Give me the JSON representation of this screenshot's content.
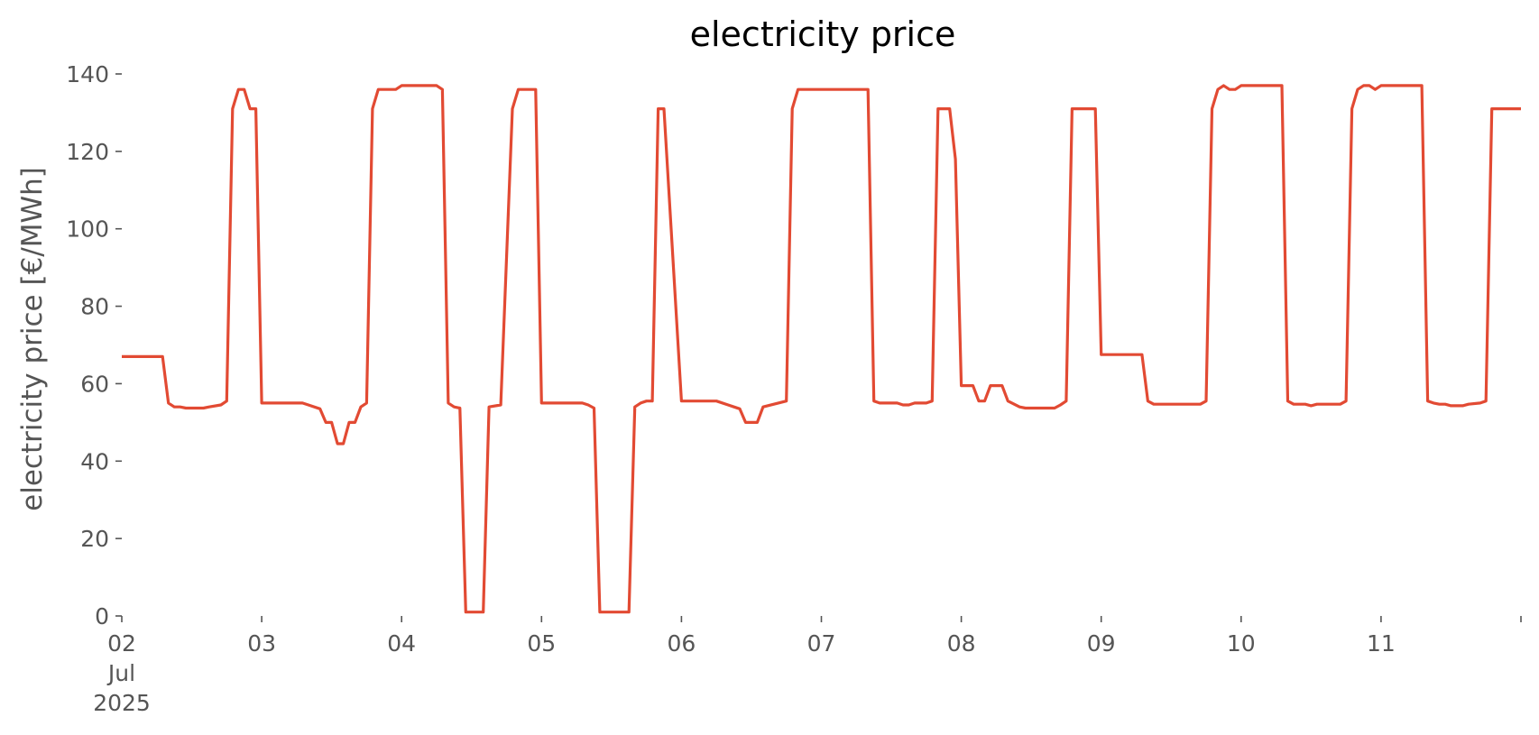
{
  "chart_data": {
    "type": "line",
    "title": "electricity price",
    "xlabel": "",
    "ylabel": "electricity price [€/MWh]",
    "ylim": [
      0,
      140
    ],
    "xlim": [
      "2025-07-02T00:00",
      "2025-07-12T00:00"
    ],
    "x_ticks": [
      {
        "x": "2025-07-02T00:00",
        "label": "02",
        "sublabels": [
          "Jul",
          "2025"
        ]
      },
      {
        "x": "2025-07-03T00:00",
        "label": "03",
        "sublabels": []
      },
      {
        "x": "2025-07-04T00:00",
        "label": "04",
        "sublabels": []
      },
      {
        "x": "2025-07-05T00:00",
        "label": "05",
        "sublabels": []
      },
      {
        "x": "2025-07-06T00:00",
        "label": "06",
        "sublabels": []
      },
      {
        "x": "2025-07-07T00:00",
        "label": "07",
        "sublabels": []
      },
      {
        "x": "2025-07-08T00:00",
        "label": "08",
        "sublabels": []
      },
      {
        "x": "2025-07-09T00:00",
        "label": "09",
        "sublabels": []
      },
      {
        "x": "2025-07-10T00:00",
        "label": "10",
        "sublabels": []
      },
      {
        "x": "2025-07-11T00:00",
        "label": "11",
        "sublabels": []
      },
      {
        "x": "2025-07-12T00:00",
        "label": "",
        "sublabels": []
      }
    ],
    "y_ticks": [
      {
        "y": 0,
        "label": "0"
      },
      {
        "y": 20,
        "label": "20"
      },
      {
        "y": 40,
        "label": "40"
      },
      {
        "y": 60,
        "label": "60"
      },
      {
        "y": 80,
        "label": "80"
      },
      {
        "y": 100,
        "label": "100"
      },
      {
        "y": 120,
        "label": "120"
      },
      {
        "y": 140,
        "label": "140"
      }
    ],
    "grid": false,
    "legend": "none",
    "series": [
      {
        "color": "#e24a33",
        "points": [
          [
            "2025-07-02T00:00",
            67
          ],
          [
            "2025-07-02T07:00",
            67
          ],
          [
            "2025-07-02T08:00",
            55
          ],
          [
            "2025-07-02T09:00",
            54
          ],
          [
            "2025-07-02T10:00",
            54
          ],
          [
            "2025-07-02T11:00",
            53.7
          ],
          [
            "2025-07-02T14:00",
            53.7
          ],
          [
            "2025-07-02T15:00",
            54
          ],
          [
            "2025-07-02T17:00",
            54.5
          ],
          [
            "2025-07-02T18:00",
            55.5
          ],
          [
            "2025-07-02T19:00",
            131
          ],
          [
            "2025-07-02T20:00",
            136
          ],
          [
            "2025-07-02T21:00",
            136
          ],
          [
            "2025-07-02T22:00",
            131
          ],
          [
            "2025-07-02T23:00",
            131
          ],
          [
            "2025-07-03T00:00",
            55
          ],
          [
            "2025-07-03T07:00",
            55
          ],
          [
            "2025-07-03T08:00",
            54.5
          ],
          [
            "2025-07-03T10:00",
            53.5
          ],
          [
            "2025-07-03T11:00",
            50
          ],
          [
            "2025-07-03T12:00",
            50
          ],
          [
            "2025-07-03T13:00",
            44.5
          ],
          [
            "2025-07-03T14:00",
            44.5
          ],
          [
            "2025-07-03T15:00",
            50
          ],
          [
            "2025-07-03T16:00",
            50
          ],
          [
            "2025-07-03T17:00",
            54
          ],
          [
            "2025-07-03T18:00",
            55
          ],
          [
            "2025-07-03T19:00",
            131
          ],
          [
            "2025-07-03T20:00",
            136
          ],
          [
            "2025-07-03T23:00",
            136
          ],
          [
            "2025-07-04T00:00",
            137
          ],
          [
            "2025-07-04T06:00",
            137
          ],
          [
            "2025-07-04T07:00",
            136
          ],
          [
            "2025-07-04T08:00",
            55
          ],
          [
            "2025-07-04T09:00",
            54
          ],
          [
            "2025-07-04T10:00",
            53.7
          ],
          [
            "2025-07-04T11:00",
            1
          ],
          [
            "2025-07-04T14:00",
            1
          ],
          [
            "2025-07-04T15:00",
            54
          ],
          [
            "2025-07-04T17:00",
            54.5
          ],
          [
            "2025-07-04T19:00",
            131
          ],
          [
            "2025-07-04T20:00",
            136
          ],
          [
            "2025-07-04T23:00",
            136
          ],
          [
            "2025-07-05T00:00",
            55
          ],
          [
            "2025-07-05T07:00",
            55
          ],
          [
            "2025-07-05T08:00",
            54.5
          ],
          [
            "2025-07-05T09:00",
            53.7
          ],
          [
            "2025-07-05T10:00",
            1
          ],
          [
            "2025-07-05T14:00",
            1
          ],
          [
            "2025-07-05T15:00",
            1
          ],
          [
            "2025-07-05T16:00",
            54
          ],
          [
            "2025-07-05T17:00",
            55
          ],
          [
            "2025-07-05T18:00",
            55.5
          ],
          [
            "2025-07-05T19:00",
            55.5
          ],
          [
            "2025-07-05T20:00",
            131
          ],
          [
            "2025-07-05T21:00",
            131
          ],
          [
            "2025-07-06T00:00",
            55.5
          ],
          [
            "2025-07-06T06:00",
            55.5
          ],
          [
            "2025-07-06T08:00",
            54.5
          ],
          [
            "2025-07-06T09:00",
            54
          ],
          [
            "2025-07-06T10:00",
            53.5
          ],
          [
            "2025-07-06T11:00",
            50
          ],
          [
            "2025-07-06T12:00",
            50
          ],
          [
            "2025-07-06T13:00",
            50
          ],
          [
            "2025-07-06T14:00",
            54
          ],
          [
            "2025-07-06T18:00",
            55.5
          ],
          [
            "2025-07-06T19:00",
            131
          ],
          [
            "2025-07-06T20:00",
            136
          ],
          [
            "2025-07-07T00:00",
            136
          ],
          [
            "2025-07-07T08:00",
            136
          ],
          [
            "2025-07-07T09:00",
            55.5
          ],
          [
            "2025-07-07T10:00",
            55
          ],
          [
            "2025-07-07T13:00",
            55
          ],
          [
            "2025-07-07T14:00",
            54.5
          ],
          [
            "2025-07-07T15:00",
            54.5
          ],
          [
            "2025-07-07T16:00",
            55
          ],
          [
            "2025-07-07T18:00",
            55
          ],
          [
            "2025-07-07T19:00",
            55.5
          ],
          [
            "2025-07-07T20:00",
            131
          ],
          [
            "2025-07-07T22:00",
            131
          ],
          [
            "2025-07-07T23:00",
            118
          ],
          [
            "2025-07-08T00:00",
            59.5
          ],
          [
            "2025-07-08T02:00",
            59.5
          ],
          [
            "2025-07-08T03:00",
            55.5
          ],
          [
            "2025-07-08T04:00",
            55.5
          ],
          [
            "2025-07-08T05:00",
            59.5
          ],
          [
            "2025-07-08T07:00",
            59.5
          ],
          [
            "2025-07-08T08:00",
            55.5
          ],
          [
            "2025-07-08T10:00",
            54
          ],
          [
            "2025-07-08T11:00",
            53.7
          ],
          [
            "2025-07-08T16:00",
            53.7
          ],
          [
            "2025-07-08T17:00",
            54.5
          ],
          [
            "2025-07-08T18:00",
            55.5
          ],
          [
            "2025-07-08T19:00",
            131
          ],
          [
            "2025-07-08T23:00",
            131
          ],
          [
            "2025-07-09T00:00",
            67.5
          ],
          [
            "2025-07-09T07:00",
            67.5
          ],
          [
            "2025-07-09T08:00",
            55.5
          ],
          [
            "2025-07-09T09:00",
            54.7
          ],
          [
            "2025-07-09T17:00",
            54.7
          ],
          [
            "2025-07-09T18:00",
            55.5
          ],
          [
            "2025-07-09T19:00",
            131
          ],
          [
            "2025-07-09T20:00",
            136
          ],
          [
            "2025-07-09T21:00",
            137
          ],
          [
            "2025-07-09T22:00",
            136
          ],
          [
            "2025-07-09T23:00",
            136
          ],
          [
            "2025-07-10T00:00",
            137
          ],
          [
            "2025-07-10T07:00",
            137
          ],
          [
            "2025-07-10T08:00",
            55.5
          ],
          [
            "2025-07-10T09:00",
            54.7
          ],
          [
            "2025-07-10T11:00",
            54.7
          ],
          [
            "2025-07-10T12:00",
            54.3
          ],
          [
            "2025-07-10T13:00",
            54.7
          ],
          [
            "2025-07-10T17:00",
            54.7
          ],
          [
            "2025-07-10T18:00",
            55.5
          ],
          [
            "2025-07-10T19:00",
            131
          ],
          [
            "2025-07-10T20:00",
            136
          ],
          [
            "2025-07-10T21:00",
            137
          ],
          [
            "2025-07-10T22:00",
            137
          ],
          [
            "2025-07-10T23:00",
            136
          ],
          [
            "2025-07-11T00:00",
            137
          ],
          [
            "2025-07-11T07:00",
            137
          ],
          [
            "2025-07-11T08:00",
            55.5
          ],
          [
            "2025-07-11T09:00",
            55
          ],
          [
            "2025-07-11T10:00",
            54.7
          ],
          [
            "2025-07-11T11:00",
            54.7
          ],
          [
            "2025-07-11T12:00",
            54.3
          ],
          [
            "2025-07-11T14:00",
            54.3
          ],
          [
            "2025-07-11T15:00",
            54.7
          ],
          [
            "2025-07-11T17:00",
            55
          ],
          [
            "2025-07-11T18:00",
            55.5
          ],
          [
            "2025-07-11T19:00",
            131
          ],
          [
            "2025-07-12T00:00",
            131
          ]
        ]
      }
    ]
  }
}
